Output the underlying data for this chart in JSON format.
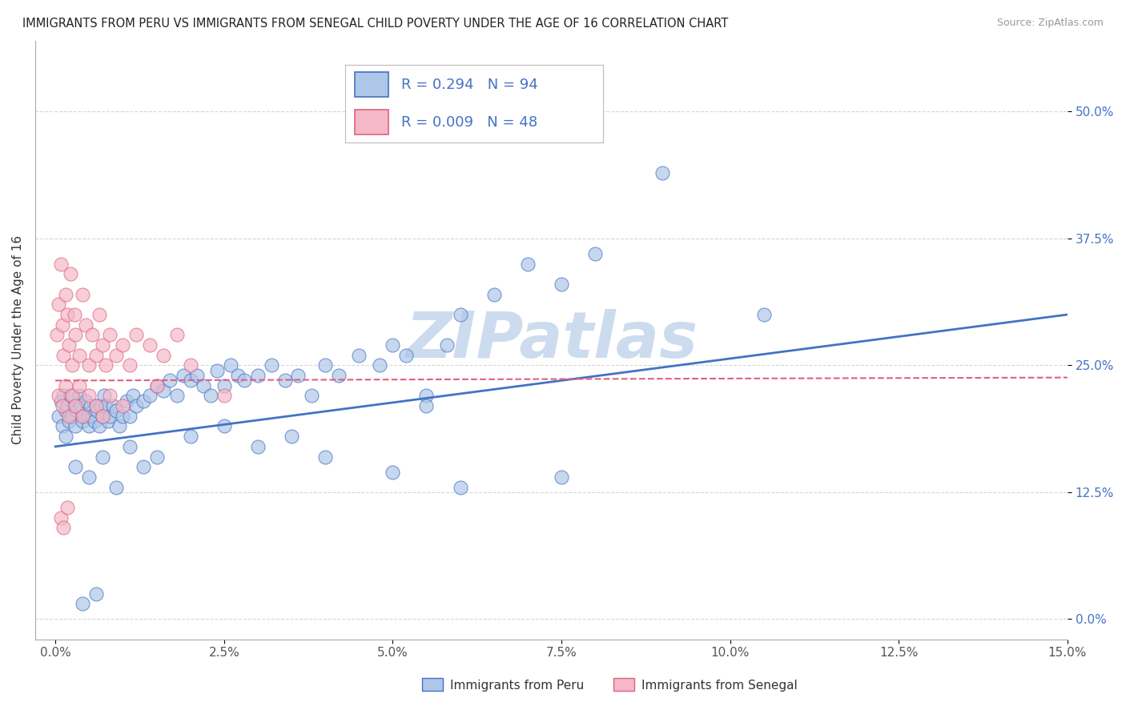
{
  "title": "IMMIGRANTS FROM PERU VS IMMIGRANTS FROM SENEGAL CHILD POVERTY UNDER THE AGE OF 16 CORRELATION CHART",
  "source": "Source: ZipAtlas.com",
  "ylabel": "Child Poverty Under the Age of 16",
  "xlim": [
    -0.3,
    15.0
  ],
  "ylim": [
    -2.0,
    57.0
  ],
  "xticks": [
    0.0,
    2.5,
    5.0,
    7.5,
    10.0,
    12.5,
    15.0
  ],
  "yticks": [
    0.0,
    12.5,
    25.0,
    37.5,
    50.0
  ],
  "xtick_labels": [
    "0.0%",
    "2.5%",
    "5.0%",
    "7.5%",
    "10.0%",
    "12.5%",
    "15.0%"
  ],
  "ytick_labels": [
    "0.0%",
    "12.5%",
    "25.0%",
    "37.5%",
    "50.0%"
  ],
  "legend1_label": "Immigrants from Peru",
  "legend2_label": "Immigrants from Senegal",
  "R_peru": 0.294,
  "N_peru": 94,
  "R_senegal": 0.009,
  "N_senegal": 48,
  "color_peru": "#aec6e8",
  "color_senegal": "#f4b8c8",
  "line_peru": "#4472c4",
  "line_senegal": "#e06080",
  "tick_color": "#4472c4",
  "watermark_text": "ZIPatlas",
  "watermark_color": "#ccdcee",
  "background_color": "#ffffff",
  "peru_trend_x0": 0.0,
  "peru_trend_y0": 17.0,
  "peru_trend_x1": 15.0,
  "peru_trend_y1": 30.0,
  "senegal_trend_x0": 0.0,
  "senegal_trend_y0": 23.5,
  "senegal_trend_x1": 15.0,
  "senegal_trend_y1": 23.8,
  "peru_x": [
    0.05,
    0.08,
    0.1,
    0.12,
    0.15,
    0.15,
    0.18,
    0.2,
    0.22,
    0.25,
    0.28,
    0.3,
    0.32,
    0.35,
    0.38,
    0.4,
    0.42,
    0.45,
    0.48,
    0.5,
    0.52,
    0.55,
    0.58,
    0.6,
    0.62,
    0.65,
    0.68,
    0.7,
    0.72,
    0.75,
    0.78,
    0.8,
    0.85,
    0.9,
    0.95,
    1.0,
    1.05,
    1.1,
    1.15,
    1.2,
    1.3,
    1.4,
    1.5,
    1.6,
    1.7,
    1.8,
    1.9,
    2.0,
    2.1,
    2.2,
    2.3,
    2.4,
    2.5,
    2.6,
    2.7,
    2.8,
    3.0,
    3.2,
    3.4,
    3.6,
    3.8,
    4.0,
    4.2,
    4.5,
    4.8,
    5.0,
    5.2,
    5.5,
    5.8,
    6.0,
    6.5,
    7.0,
    7.5,
    8.0,
    9.0,
    10.5,
    0.3,
    0.5,
    0.7,
    0.9,
    1.1,
    1.3,
    1.5,
    2.0,
    2.5,
    3.0,
    3.5,
    4.0,
    5.0,
    6.0,
    7.5,
    5.5,
    0.4,
    0.6
  ],
  "peru_y": [
    20.0,
    21.5,
    19.0,
    22.0,
    20.5,
    18.0,
    21.0,
    19.5,
    22.0,
    20.0,
    21.0,
    19.0,
    20.5,
    22.0,
    21.0,
    19.5,
    20.0,
    21.5,
    20.0,
    19.0,
    21.0,
    20.0,
    19.5,
    21.0,
    20.5,
    19.0,
    21.0,
    20.0,
    22.0,
    21.0,
    19.5,
    20.0,
    21.0,
    20.5,
    19.0,
    20.0,
    21.5,
    20.0,
    22.0,
    21.0,
    21.5,
    22.0,
    23.0,
    22.5,
    23.5,
    22.0,
    24.0,
    23.5,
    24.0,
    23.0,
    22.0,
    24.5,
    23.0,
    25.0,
    24.0,
    23.5,
    24.0,
    25.0,
    23.5,
    24.0,
    22.0,
    25.0,
    24.0,
    26.0,
    25.0,
    27.0,
    26.0,
    22.0,
    27.0,
    30.0,
    32.0,
    35.0,
    33.0,
    36.0,
    44.0,
    30.0,
    15.0,
    14.0,
    16.0,
    13.0,
    17.0,
    15.0,
    16.0,
    18.0,
    19.0,
    17.0,
    18.0,
    16.0,
    14.5,
    13.0,
    14.0,
    21.0,
    1.5,
    2.5
  ],
  "senegal_x": [
    0.02,
    0.05,
    0.08,
    0.1,
    0.12,
    0.15,
    0.18,
    0.2,
    0.22,
    0.25,
    0.28,
    0.3,
    0.35,
    0.4,
    0.45,
    0.5,
    0.55,
    0.6,
    0.65,
    0.7,
    0.75,
    0.8,
    0.9,
    1.0,
    1.1,
    1.2,
    1.4,
    1.6,
    1.8,
    2.0,
    0.05,
    0.1,
    0.15,
    0.2,
    0.25,
    0.3,
    0.35,
    0.4,
    0.5,
    0.6,
    0.7,
    0.8,
    1.0,
    1.5,
    2.5,
    0.08,
    0.12,
    0.18
  ],
  "senegal_y": [
    28.0,
    31.0,
    35.0,
    29.0,
    26.0,
    32.0,
    30.0,
    27.0,
    34.0,
    25.0,
    30.0,
    28.0,
    26.0,
    32.0,
    29.0,
    25.0,
    28.0,
    26.0,
    30.0,
    27.0,
    25.0,
    28.0,
    26.0,
    27.0,
    25.0,
    28.0,
    27.0,
    26.0,
    28.0,
    25.0,
    22.0,
    21.0,
    23.0,
    20.0,
    22.0,
    21.0,
    23.0,
    20.0,
    22.0,
    21.0,
    20.0,
    22.0,
    21.0,
    23.0,
    22.0,
    10.0,
    9.0,
    11.0
  ]
}
